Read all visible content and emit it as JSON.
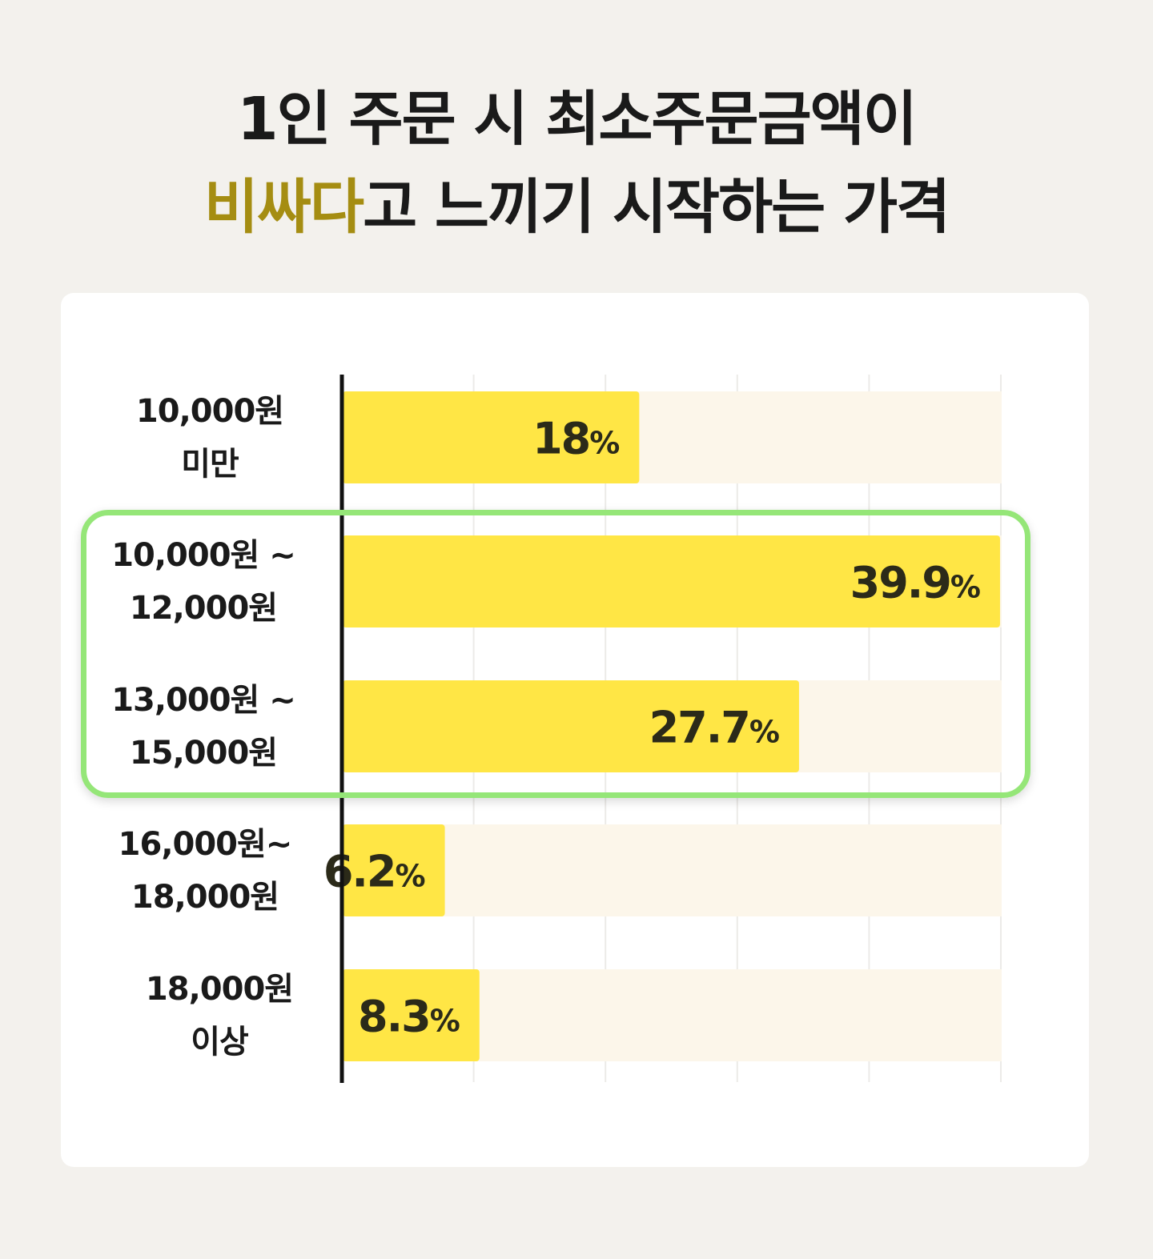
{
  "title": {
    "line1": "1인 주문 시 최소주문금액이",
    "line2_highlight": "비싸다",
    "line2_rest": "고 느끼기 시작하는 가격"
  },
  "chart_data": {
    "type": "bar",
    "orientation": "horizontal",
    "categories": [
      [
        "10,000원",
        "미만"
      ],
      [
        "10,000원 ~",
        "12,000원"
      ],
      [
        "13,000원 ~",
        "15,000원"
      ],
      [
        "16,000원~",
        "18,000원"
      ],
      [
        "18,000원",
        "이상"
      ]
    ],
    "values": [
      18,
      39.9,
      27.7,
      6.2,
      8.3
    ],
    "value_labels": [
      "18",
      "39.9",
      "27.7",
      "6.2",
      "8.3"
    ],
    "unit": "%",
    "xlim": [
      0,
      40
    ],
    "highlighted_categories": [
      1,
      2
    ],
    "grid": true,
    "colors": {
      "bar": "#ffe645",
      "track": "#fcf6ea",
      "highlight": "#95e678",
      "title_accent": "#a58d12"
    }
  }
}
